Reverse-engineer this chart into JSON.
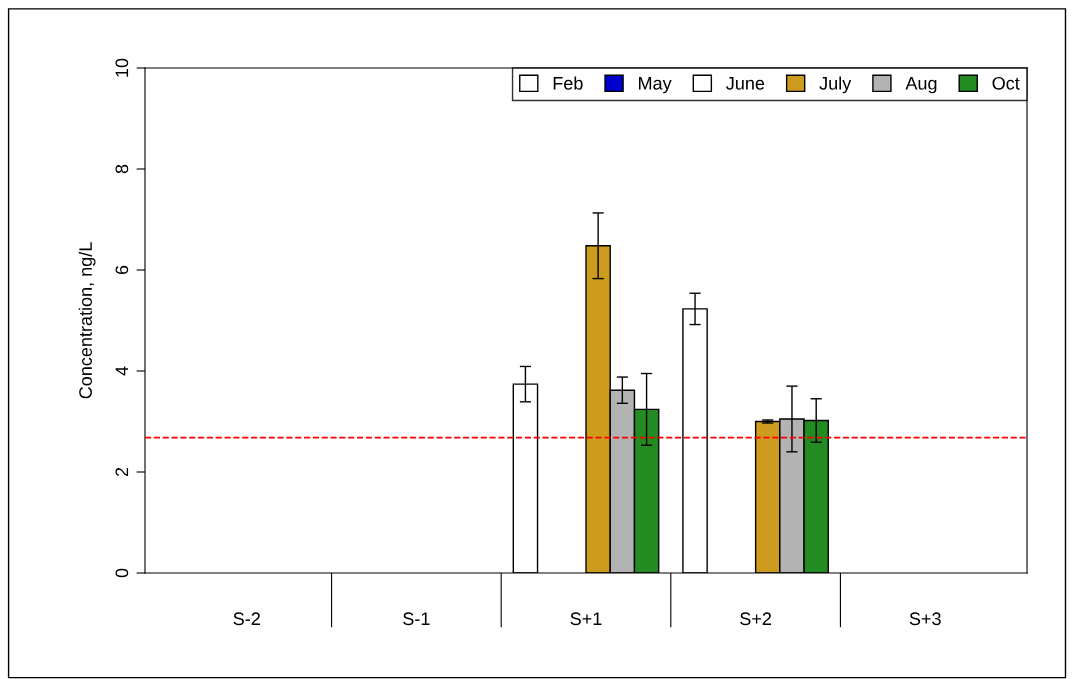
{
  "chart_data": {
    "type": "bar",
    "ylabel": "Concentration, ng/L",
    "categories": [
      "S-2",
      "S-1",
      "S+1",
      "S+2",
      "S+3"
    ],
    "series": [
      {
        "name": "Feb",
        "color": "#ffffff",
        "values": [
          0,
          0,
          3.74,
          5.23,
          0
        ],
        "errors": [
          null,
          null,
          0.35,
          0.31,
          null
        ]
      },
      {
        "name": "May",
        "color": "#0000cd",
        "values": [
          0,
          0,
          0,
          0,
          0
        ]
      },
      {
        "name": "June",
        "color": "#ffffff",
        "values": [
          0,
          0,
          0,
          0,
          0
        ]
      },
      {
        "name": "July",
        "color": "#cd9b1d",
        "values": [
          0,
          0,
          6.48,
          3.0,
          0
        ],
        "errors": [
          null,
          null,
          0.65,
          0.03,
          null
        ]
      },
      {
        "name": "Aug",
        "color": "#b3b3b3",
        "values": [
          0,
          0,
          3.62,
          3.05,
          0
        ],
        "errors": [
          null,
          null,
          0.26,
          0.65,
          null
        ]
      },
      {
        "name": "Oct",
        "color": "#228b22",
        "values": [
          0,
          0,
          3.24,
          3.02,
          0
        ],
        "errors": [
          null,
          null,
          0.71,
          0.43,
          null
        ]
      }
    ],
    "ylim": [
      0,
      10
    ],
    "yticks": [
      0,
      2,
      4,
      6,
      8,
      10
    ],
    "ref_lines": [
      {
        "axis": "y",
        "value": 2.68,
        "color": "#ff0000",
        "line_style": "dashed"
      }
    ],
    "legend": "top right",
    "grid": false
  }
}
